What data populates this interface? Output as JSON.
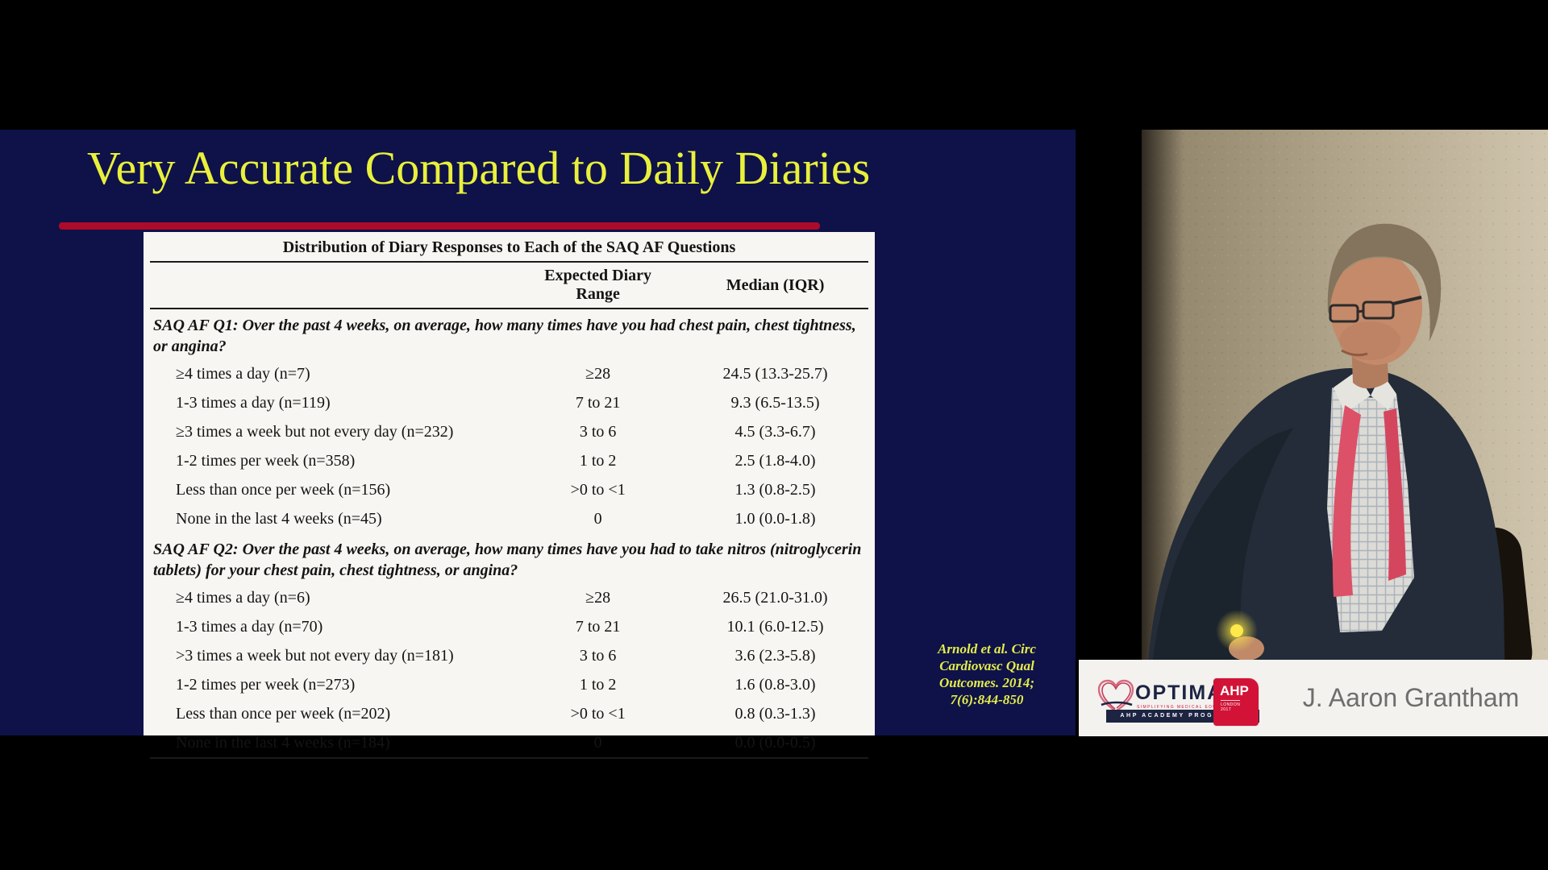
{
  "colors": {
    "slide-bg": "#0e1248",
    "title-yellow": "#e9f03b",
    "accent-red": "#ac0b29",
    "table-bg": "#f7f6f3",
    "table-text": "#141414",
    "citation-yellow": "#e5ec4a",
    "banner-bg": "#f3f2ef",
    "name-gray": "#6e6e6e",
    "logo-navy": "#1c2442",
    "logo-red": "#d21337"
  },
  "slide": {
    "title": "Very Accurate Compared to Daily Diaries",
    "table": {
      "caption": "Distribution of Diary Responses to Each of the SAQ AF Questions",
      "col_range": "Expected Diary Range",
      "col_median": "Median (IQR)",
      "sections": [
        {
          "question": "SAQ AF Q1: Over the past 4 weeks, on average, how many times have you had chest pain, chest tightness, or angina?",
          "rows": [
            {
              "label": "≥4 times a day (n=7)",
              "range": "≥28",
              "median": "24.5 (13.3-25.7)"
            },
            {
              "label": "1-3 times a day (n=119)",
              "range": "7 to 21",
              "median": "9.3 (6.5-13.5)"
            },
            {
              "label": "≥3 times a week but not every day (n=232)",
              "range": "3 to 6",
              "median": "4.5 (3.3-6.7)"
            },
            {
              "label": "1-2 times per week (n=358)",
              "range": "1 to 2",
              "median": "2.5 (1.8-4.0)"
            },
            {
              "label": "Less than once per week (n=156)",
              "range": ">0 to <1",
              "median": "1.3 (0.8-2.5)"
            },
            {
              "label": "None in the last 4 weeks (n=45)",
              "range": "0",
              "median": "1.0 (0.0-1.8)"
            }
          ]
        },
        {
          "question": "SAQ AF Q2: Over the past 4 weeks, on average, how many times have you had to take nitros (nitroglycerin tablets) for your chest pain, chest tightness, or angina?",
          "rows": [
            {
              "label": "≥4 times a day (n=6)",
              "range": "≥28",
              "median": "26.5 (21.0-31.0)"
            },
            {
              "label": "1-3 times a day (n=70)",
              "range": "7 to 21",
              "median": "10.1 (6.0-12.5)"
            },
            {
              "label": ">3 times a week but not every day (n=181)",
              "range": "3 to 6",
              "median": "3.6 (2.3-5.8)"
            },
            {
              "label": "1-2 times per week (n=273)",
              "range": "1 to 2",
              "median": "1.6 (0.8-3.0)"
            },
            {
              "label": "Less than once per week (n=202)",
              "range": ">0 to <1",
              "median": "0.8 (0.3-1.3)"
            },
            {
              "label": "None in the last 4 weeks (n=184)",
              "range": "0",
              "median": "0.0 (0.0-0.5)"
            }
          ]
        }
      ]
    },
    "citation": "Arnold et al. Circ\nCardiovasc Qual\nOutcomes. 2014;\n7(6):844-850"
  },
  "banner": {
    "speaker_name": "J. Aaron Grantham",
    "logo": {
      "brand": "OPTIMAL",
      "tagline": "SIMPLIFYING MEDICAL EDUCATION",
      "badge": "AHP",
      "badge_sub": "LONDON\n2017",
      "strip": "AHP ACADEMY PROGRAMME"
    }
  }
}
